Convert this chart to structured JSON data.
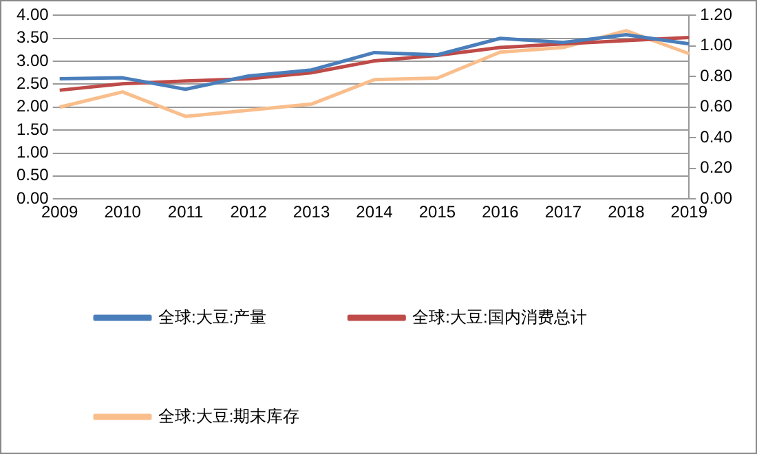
{
  "chart_data": {
    "type": "line",
    "categories": [
      "2009",
      "2010",
      "2011",
      "2012",
      "2013",
      "2014",
      "2015",
      "2016",
      "2017",
      "2018",
      "2019"
    ],
    "series": [
      {
        "name": "全球:大豆:产量",
        "color": "#4a7ebb",
        "values": [
          2.62,
          2.64,
          2.39,
          2.68,
          2.81,
          3.19,
          3.14,
          3.5,
          3.41,
          3.58,
          3.38
        ]
      },
      {
        "name": "全球:大豆:国内消费总计",
        "color": "#be4b48",
        "values": [
          2.37,
          2.51,
          2.57,
          2.62,
          2.75,
          3.01,
          3.13,
          3.3,
          3.38,
          3.45,
          3.52
        ]
      },
      {
        "name": "全球:大豆:期末库存",
        "color": "#f9be8c",
        "axis": "y2",
        "values": [
          0.6,
          0.7,
          0.54,
          0.58,
          0.62,
          0.78,
          0.79,
          0.96,
          0.99,
          1.1,
          0.95
        ]
      }
    ],
    "ylim": [
      0,
      4
    ],
    "yticks": [
      {
        "value": 0,
        "label": "0.00"
      },
      {
        "value": 0.5,
        "label": "0.50"
      },
      {
        "value": 1,
        "label": "1.00"
      },
      {
        "value": 1.5,
        "label": "1.50"
      },
      {
        "value": 2,
        "label": "2.00"
      },
      {
        "value": 2.5,
        "label": "2.50"
      },
      {
        "value": 3,
        "label": "3.00"
      },
      {
        "value": 3.5,
        "label": "3.50"
      },
      {
        "value": 4,
        "label": "4.00"
      }
    ],
    "y2lim": [
      0,
      1.2
    ],
    "y2ticks": [
      {
        "value": 0,
        "label": "0.00"
      },
      {
        "value": 0.2,
        "label": "0.20"
      },
      {
        "value": 0.4,
        "label": "0.40"
      },
      {
        "value": 0.6,
        "label": "0.60"
      },
      {
        "value": 0.8,
        "label": "0.80"
      },
      {
        "value": 1,
        "label": "1.00"
      },
      {
        "value": 1.2,
        "label": "1.20"
      }
    ],
    "grid": "y",
    "legend": "bottom",
    "marker": "none",
    "line_style": "solid"
  }
}
